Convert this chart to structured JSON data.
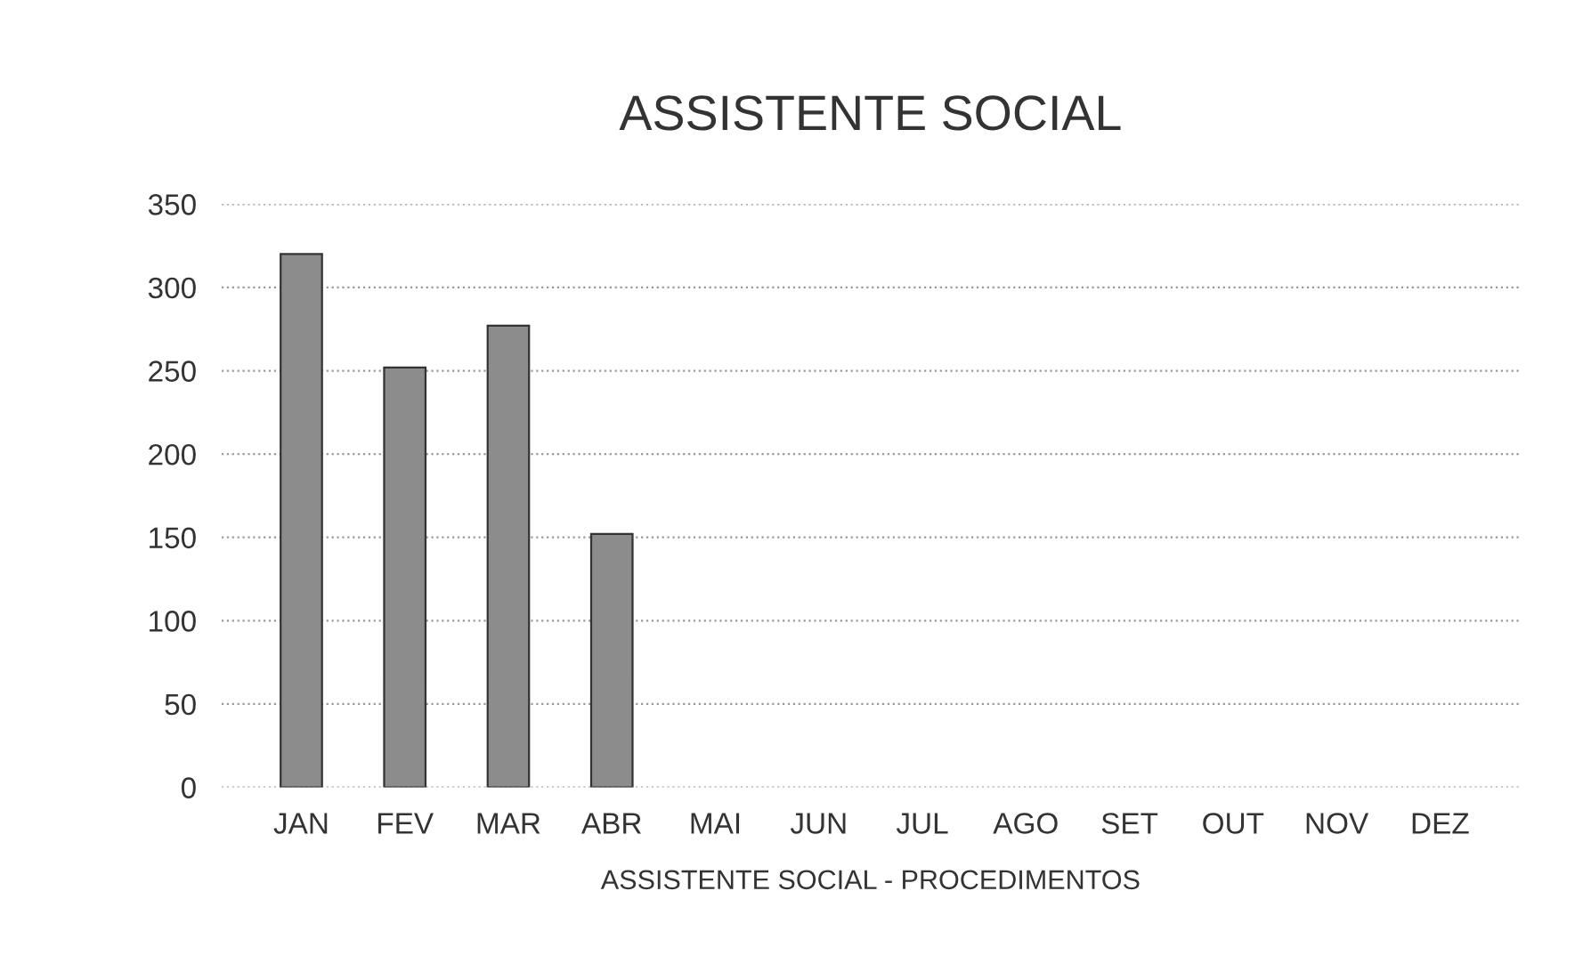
{
  "chart_data": {
    "type": "bar",
    "title": "ASSISTENTE SOCIAL",
    "xlabel": "ASSISTENTE SOCIAL - PROCEDIMENTOS",
    "categories": [
      "JAN",
      "FEV",
      "MAR",
      "ABR",
      "MAI",
      "JUN",
      "JUL",
      "AGO",
      "SET",
      "OUT",
      "NOV",
      "DEZ"
    ],
    "values": [
      320,
      252,
      277,
      152,
      null,
      null,
      null,
      null,
      null,
      null,
      null,
      null
    ],
    "color": "#8c8c8c",
    "ylim": [
      0,
      350
    ],
    "yticks": [
      0,
      50,
      100,
      150,
      200,
      250,
      300,
      350
    ],
    "grid": "y",
    "legend": false
  }
}
